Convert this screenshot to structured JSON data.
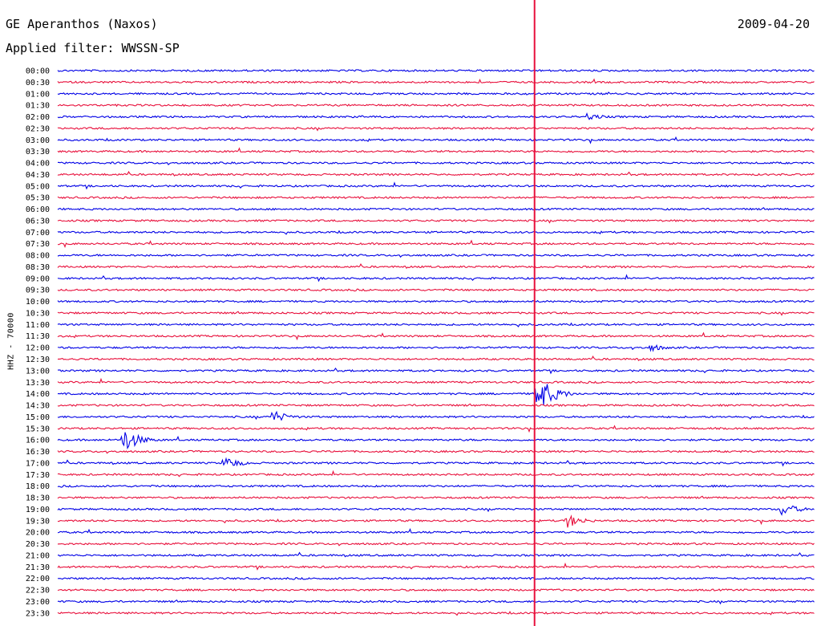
{
  "header": {
    "station": "GE Aperanthos (Naxos)",
    "date": "2009-04-20",
    "filter": "Applied filter: WWSSN-SP"
  },
  "chart_data": {
    "type": "line",
    "title": "GE Aperanthos (Naxos)",
    "date": "2009-04-20",
    "filter": "WWSSN-SP",
    "ylabel": "HHZ - 70000",
    "row_labels": [
      "00:00",
      "00:30",
      "01:00",
      "01:30",
      "02:00",
      "02:30",
      "03:00",
      "03:30",
      "04:00",
      "04:30",
      "05:00",
      "05:30",
      "06:00",
      "06:30",
      "07:00",
      "07:30",
      "08:00",
      "08:30",
      "09:00",
      "09:30",
      "10:00",
      "10:30",
      "11:00",
      "11:30",
      "12:00",
      "12:30",
      "13:00",
      "13:30",
      "14:00",
      "14:30",
      "15:00",
      "15:30",
      "16:00",
      "16:30",
      "17:00",
      "17:30",
      "18:00",
      "18:30",
      "19:00",
      "19:30",
      "20:00",
      "20:30",
      "21:00",
      "21:30",
      "22:00",
      "22:30",
      "23:00",
      "23:30"
    ],
    "row_interval_minutes": 30,
    "x_range_minutes": [
      0,
      30
    ],
    "series_colors": [
      "#0000e6",
      "#e8103c"
    ],
    "marker_minute": 18.9,
    "marker_color": "#e8103c",
    "events": [
      {
        "row": "14:00",
        "minute": 19.0,
        "amplitude": "very large",
        "color": "#e8103c"
      },
      {
        "row": "16:00",
        "minute": 2.6,
        "amplitude": "large",
        "color": "#0000e6"
      },
      {
        "row": "15:00",
        "minute": 8.5,
        "amplitude": "medium",
        "color": "#0000e6"
      },
      {
        "row": "17:00",
        "minute": 6.6,
        "amplitude": "medium",
        "color": "#0000e6"
      },
      {
        "row": "02:00",
        "minute": 21.0,
        "amplitude": "small",
        "color": "#0000e6"
      },
      {
        "row": "12:00",
        "minute": 23.5,
        "amplitude": "small",
        "color": "#0000e6"
      },
      {
        "row": "19:00",
        "minute": 28.7,
        "amplitude": "medium",
        "color": "#0000e6"
      },
      {
        "row": "19:30",
        "minute": 20.2,
        "amplitude": "medium",
        "color": "#e8103c"
      }
    ]
  }
}
